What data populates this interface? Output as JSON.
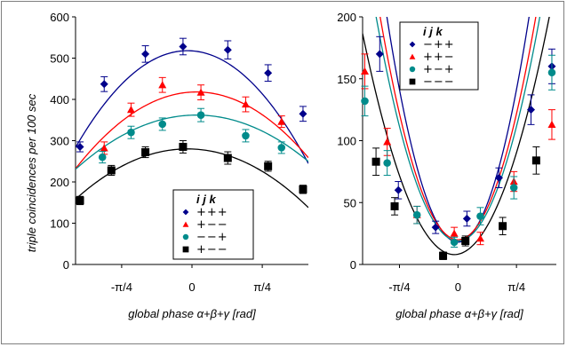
{
  "figure": {
    "ylabel": "triple coincidences per 100 sec",
    "xlabel": "global phase α+β+γ   [rad]"
  },
  "colors": {
    "series1": "#00008b",
    "series2": "#ff0000",
    "series3": "#008b8b",
    "series4": "#000000",
    "axis": "#000000"
  },
  "chart_data": [
    {
      "type": "scatter",
      "xlabel": "global phase α+β+γ   [rad]",
      "ylabel": "triple coincidences per 100 sec",
      "xlim": [
        -1.3,
        1.3
      ],
      "ylim": [
        0,
        600
      ],
      "yticks": [
        0,
        100,
        200,
        300,
        400,
        500,
        600
      ],
      "xticks": [
        {
          "value": -0.785,
          "label": "-π/4"
        },
        {
          "value": 0,
          "label": "0"
        },
        {
          "value": 0.785,
          "label": "π/4"
        }
      ],
      "legend_header": "i j k",
      "legend_position": "bottom-right",
      "series": [
        {
          "name": "+++",
          "marker": "diamond",
          "color": "#00008b",
          "x": [
            -1.25,
            -0.98,
            -0.52,
            -0.1,
            0.4,
            0.85,
            1.24
          ],
          "y": [
            285,
            437,
            510,
            528,
            520,
            464,
            365
          ],
          "err": [
            12,
            18,
            20,
            20,
            22,
            20,
            18
          ],
          "fit": {
            "a": 518,
            "b": 5.0,
            "c": -0.05
          }
        },
        {
          "name": "+−−",
          "marker": "triangle",
          "color": "#ff0000",
          "x": [
            -0.98,
            -0.68,
            -0.33,
            0.1,
            0.6,
            1.0
          ],
          "y": [
            282,
            375,
            435,
            417,
            388,
            346
          ],
          "err": [
            15,
            16,
            18,
            18,
            18,
            14
          ],
          "fit": {
            "a": 418,
            "b": 3.4,
            "c": 0.05
          }
        },
        {
          "name": "−−+",
          "marker": "circle",
          "color": "#008b8b",
          "x": [
            -1.0,
            -0.68,
            -0.33,
            0.1,
            0.6,
            1.0
          ],
          "y": [
            260,
            320,
            340,
            362,
            312,
            283
          ],
          "err": [
            14,
            15,
            15,
            16,
            15,
            14
          ],
          "fit": {
            "a": 362,
            "b": 2.4,
            "c": 0.05
          }
        },
        {
          "name": "+−−",
          "marker": "square",
          "color": "#000000",
          "x": [
            -1.25,
            -0.9,
            -0.52,
            -0.1,
            0.4,
            0.85,
            1.24
          ],
          "y": [
            155,
            228,
            272,
            285,
            258,
            238,
            182
          ],
          "err": [
            10,
            12,
            13,
            15,
            15,
            12,
            10
          ],
          "fit": {
            "a": 280,
            "b": 2.6,
            "c": -0.05
          }
        }
      ]
    },
    {
      "type": "scatter",
      "xlabel": "global phase α+β+γ   [rad]",
      "ylabel": "",
      "xlim": [
        -1.28,
        1.32
      ],
      "ylim": [
        0,
        200
      ],
      "yticks": [
        0,
        50,
        100,
        150,
        200
      ],
      "xticks": [
        {
          "value": -0.785,
          "label": "-π/4"
        },
        {
          "value": 0,
          "label": "0"
        },
        {
          "value": 0.785,
          "label": "π/4"
        }
      ],
      "legend_header": "i j k",
      "legend_position": "top-right",
      "series": [
        {
          "name": "−++",
          "marker": "diamond",
          "color": "#00008b",
          "x": [
            -1.05,
            -0.8,
            -0.3,
            0.12,
            0.55,
            0.98,
            1.26
          ],
          "y": [
            170,
            60,
            30,
            37,
            70,
            125,
            160
          ],
          "err": [
            14,
            7,
            5,
            6,
            8,
            12,
            14
          ],
          "fit": {
            "a": 18,
            "b": 200,
            "c": 0.0
          }
        },
        {
          "name": "++−",
          "marker": "triangle",
          "color": "#ff0000",
          "x": [
            -1.25,
            -0.95,
            -0.55,
            -0.05,
            0.3,
            0.75,
            1.26
          ],
          "y": [
            156,
            99,
            40,
            25,
            21,
            67,
            113
          ],
          "err": [
            14,
            11,
            7,
            5,
            5,
            8,
            12
          ],
          "fit": {
            "a": 20,
            "b": 165,
            "c": 0.0
          }
        },
        {
          "name": "+−+",
          "marker": "circle",
          "color": "#008b8b",
          "x": [
            -1.25,
            -0.95,
            -0.55,
            -0.05,
            0.3,
            0.75,
            1.26
          ],
          "y": [
            132,
            82,
            40,
            18,
            39,
            62,
            155
          ],
          "err": [
            12,
            10,
            7,
            4,
            7,
            9,
            14
          ],
          "fit": {
            "a": 19,
            "b": 150,
            "c": 0.0
          }
        },
        {
          "name": "−−−",
          "marker": "square",
          "color": "#000000",
          "x": [
            -1.1,
            -0.85,
            -0.2,
            0.1,
            0.6,
            1.05
          ],
          "y": [
            83,
            47,
            7,
            19,
            31,
            84
          ],
          "err": [
            11,
            7,
            3,
            4,
            7,
            11
          ],
          "fit": {
            "a": 8,
            "b": 118,
            "c": -0.05
          }
        }
      ]
    }
  ]
}
